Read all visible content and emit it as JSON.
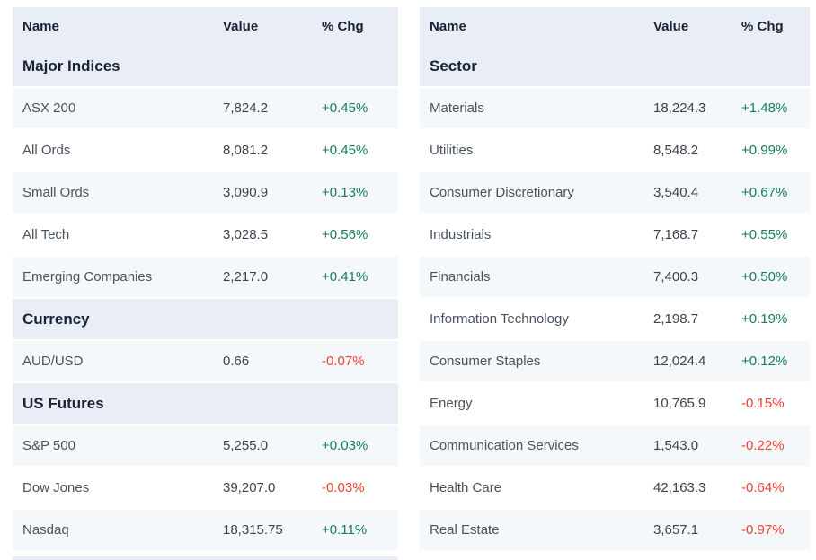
{
  "colors": {
    "band": "#e8edf6",
    "stripe": "#f5f8fb",
    "ink": "#1a2336",
    "positive": "#147d5a",
    "negative": "#ee4130"
  },
  "columns": {
    "name": "Name",
    "value": "Value",
    "chg": "% Chg"
  },
  "left_table": {
    "sections": [
      {
        "title": "Major Indices",
        "rows": [
          {
            "name": "ASX 200",
            "value": "7,824.2",
            "chg": "+0.45%"
          },
          {
            "name": "All Ords",
            "value": "8,081.2",
            "chg": "+0.45%"
          },
          {
            "name": "Small Ords",
            "value": "3,090.9",
            "chg": "+0.13%"
          },
          {
            "name": "All Tech",
            "value": "3,028.5",
            "chg": "+0.56%"
          },
          {
            "name": "Emerging Companies",
            "value": "2,217.0",
            "chg": "+0.41%"
          }
        ]
      },
      {
        "title": "Currency",
        "rows": [
          {
            "name": "AUD/USD",
            "value": "0.66",
            "chg": "-0.07%"
          }
        ]
      },
      {
        "title": "US Futures",
        "rows": [
          {
            "name": "S&P 500",
            "value": "5,255.0",
            "chg": "+0.03%"
          },
          {
            "name": "Dow Jones",
            "value": "39,207.0",
            "chg": "-0.03%"
          },
          {
            "name": "Nasdaq",
            "value": "18,315.75",
            "chg": "+0.11%"
          }
        ]
      }
    ]
  },
  "right_table": {
    "sections": [
      {
        "title": "Sector",
        "rows": [
          {
            "name": "Materials",
            "value": "18,224.3",
            "chg": "+1.48%"
          },
          {
            "name": "Utilities",
            "value": "8,548.2",
            "chg": "+0.99%"
          },
          {
            "name": "Consumer Discretionary",
            "value": "3,540.4",
            "chg": "+0.67%"
          },
          {
            "name": "Industrials",
            "value": "7,168.7",
            "chg": "+0.55%"
          },
          {
            "name": "Financials",
            "value": "7,400.3",
            "chg": "+0.50%"
          },
          {
            "name": "Information Technology",
            "value": "2,198.7",
            "chg": "+0.19%"
          },
          {
            "name": "Consumer Staples",
            "value": "12,024.4",
            "chg": "+0.12%"
          },
          {
            "name": "Energy",
            "value": "10,765.9",
            "chg": "-0.15%"
          },
          {
            "name": "Communication Services",
            "value": "1,543.0",
            "chg": "-0.22%"
          },
          {
            "name": "Health Care",
            "value": "42,163.3",
            "chg": "-0.64%"
          },
          {
            "name": "Real Estate",
            "value": "3,657.1",
            "chg": "-0.97%"
          }
        ]
      }
    ]
  }
}
